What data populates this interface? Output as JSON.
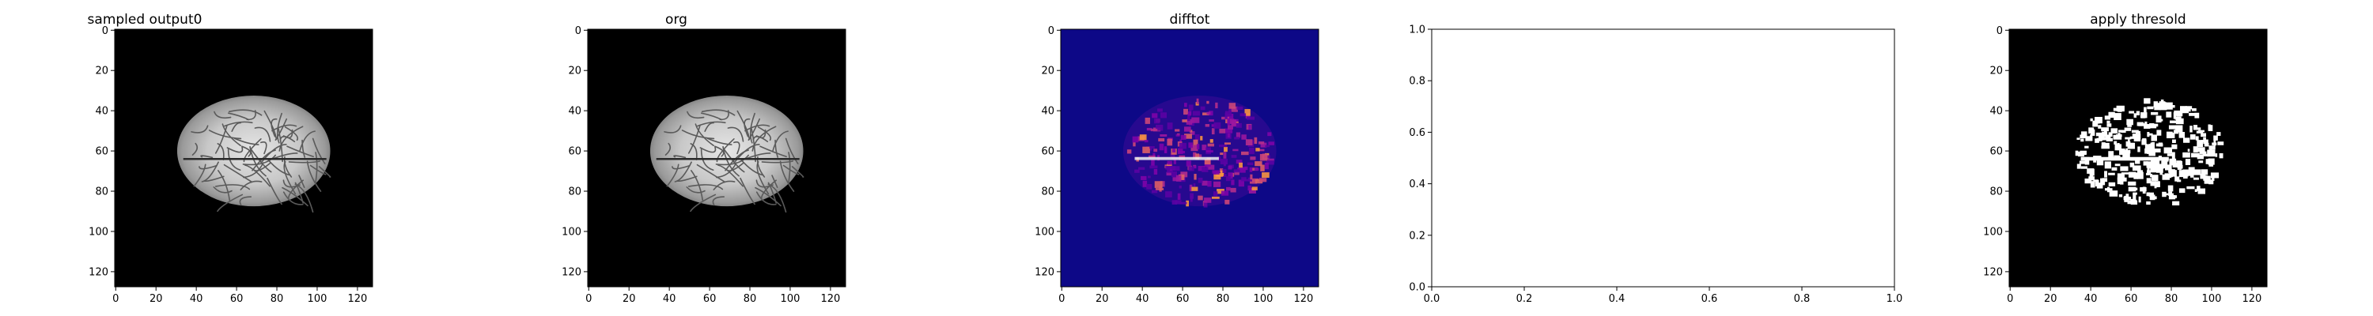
{
  "figure": {
    "panels": [
      {
        "id": "sampled",
        "title": "sampled output0",
        "kind": "image",
        "style": "gray",
        "x_ticks": [
          "0",
          "20",
          "40",
          "60",
          "80",
          "100",
          "120"
        ],
        "y_ticks": [
          "0",
          "20",
          "40",
          "60",
          "80",
          "100",
          "120"
        ]
      },
      {
        "id": "org",
        "title": "org",
        "kind": "image",
        "style": "gray",
        "x_ticks": [
          "0",
          "20",
          "40",
          "60",
          "80",
          "100",
          "120"
        ],
        "y_ticks": [
          "0",
          "20",
          "40",
          "60",
          "80",
          "100",
          "120"
        ]
      },
      {
        "id": "difftot",
        "title": "difftot",
        "kind": "image",
        "style": "plasma",
        "x_ticks": [
          "0",
          "20",
          "40",
          "60",
          "80",
          "100",
          "120"
        ],
        "y_ticks": [
          "0",
          "20",
          "40",
          "60",
          "80",
          "100",
          "120"
        ]
      },
      {
        "id": "empty",
        "title": "",
        "kind": "empty",
        "x_ticks": [
          "0.0",
          "0.2",
          "0.4",
          "0.6",
          "0.8",
          "1.0"
        ],
        "y_ticks": [
          "0.0",
          "0.2",
          "0.4",
          "0.6",
          "0.8",
          "1.0"
        ]
      },
      {
        "id": "threshold",
        "title": "apply thresold",
        "kind": "image",
        "style": "binary",
        "x_ticks": [
          "0",
          "20",
          "40",
          "60",
          "80",
          "100",
          "120"
        ],
        "y_ticks": [
          "0",
          "20",
          "40",
          "60",
          "80",
          "100",
          "120"
        ]
      }
    ],
    "colors": {
      "background": "#ffffff",
      "image_background": "#000000",
      "diff_background": "#0d0887",
      "diff_highlight": "#cc4778",
      "diff_peak": "#f89540",
      "axis": "#000000"
    }
  }
}
